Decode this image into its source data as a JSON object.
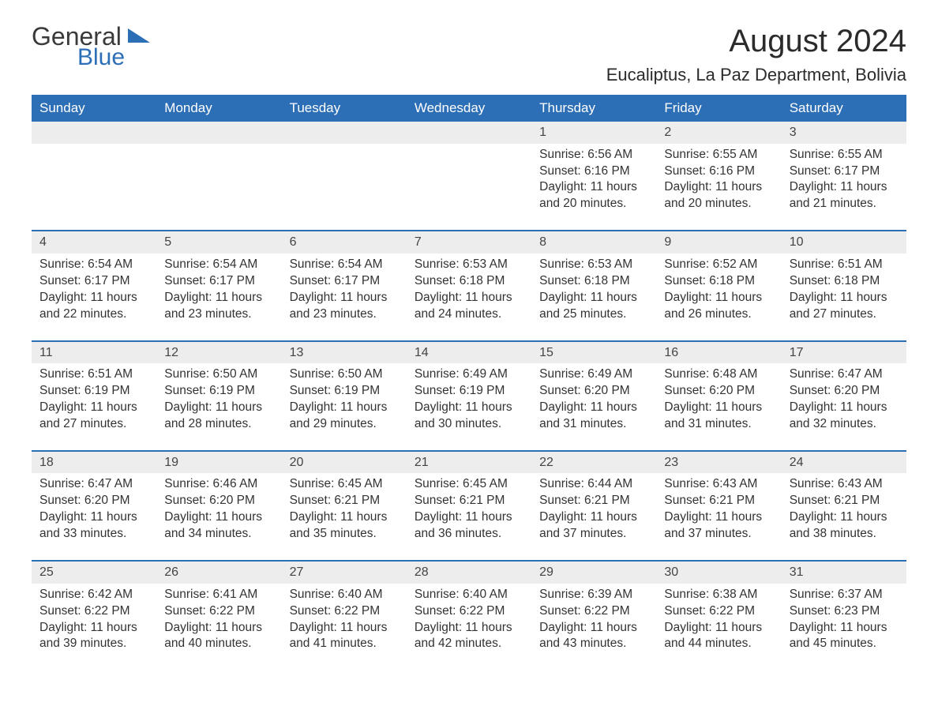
{
  "logo": {
    "word1": "General",
    "word2": "Blue"
  },
  "title": "August 2024",
  "location": "Eucaliptus, La Paz Department, Bolivia",
  "colors": {
    "header_bg": "#2d6fb6",
    "header_text": "#ffffff",
    "daynum_bg": "#ededed",
    "row_divider": "#2d6fb6",
    "body_text": "#333333",
    "page_bg": "#ffffff"
  },
  "typography": {
    "title_fontsize": 40,
    "location_fontsize": 22,
    "header_fontsize": 17,
    "cell_fontsize": 15.5
  },
  "week_headers": [
    "Sunday",
    "Monday",
    "Tuesday",
    "Wednesday",
    "Thursday",
    "Friday",
    "Saturday"
  ],
  "labels": {
    "sunrise": "Sunrise:",
    "sunset": "Sunset:",
    "daylight_prefix": "Daylight:"
  },
  "weeks": [
    [
      null,
      null,
      null,
      null,
      {
        "day": 1,
        "sunrise": "6:56 AM",
        "sunset": "6:16 PM",
        "daylight": "11 hours and 20 minutes."
      },
      {
        "day": 2,
        "sunrise": "6:55 AM",
        "sunset": "6:16 PM",
        "daylight": "11 hours and 20 minutes."
      },
      {
        "day": 3,
        "sunrise": "6:55 AM",
        "sunset": "6:17 PM",
        "daylight": "11 hours and 21 minutes."
      }
    ],
    [
      {
        "day": 4,
        "sunrise": "6:54 AM",
        "sunset": "6:17 PM",
        "daylight": "11 hours and 22 minutes."
      },
      {
        "day": 5,
        "sunrise": "6:54 AM",
        "sunset": "6:17 PM",
        "daylight": "11 hours and 23 minutes."
      },
      {
        "day": 6,
        "sunrise": "6:54 AM",
        "sunset": "6:17 PM",
        "daylight": "11 hours and 23 minutes."
      },
      {
        "day": 7,
        "sunrise": "6:53 AM",
        "sunset": "6:18 PM",
        "daylight": "11 hours and 24 minutes."
      },
      {
        "day": 8,
        "sunrise": "6:53 AM",
        "sunset": "6:18 PM",
        "daylight": "11 hours and 25 minutes."
      },
      {
        "day": 9,
        "sunrise": "6:52 AM",
        "sunset": "6:18 PM",
        "daylight": "11 hours and 26 minutes."
      },
      {
        "day": 10,
        "sunrise": "6:51 AM",
        "sunset": "6:18 PM",
        "daylight": "11 hours and 27 minutes."
      }
    ],
    [
      {
        "day": 11,
        "sunrise": "6:51 AM",
        "sunset": "6:19 PM",
        "daylight": "11 hours and 27 minutes."
      },
      {
        "day": 12,
        "sunrise": "6:50 AM",
        "sunset": "6:19 PM",
        "daylight": "11 hours and 28 minutes."
      },
      {
        "day": 13,
        "sunrise": "6:50 AM",
        "sunset": "6:19 PM",
        "daylight": "11 hours and 29 minutes."
      },
      {
        "day": 14,
        "sunrise": "6:49 AM",
        "sunset": "6:19 PM",
        "daylight": "11 hours and 30 minutes."
      },
      {
        "day": 15,
        "sunrise": "6:49 AM",
        "sunset": "6:20 PM",
        "daylight": "11 hours and 31 minutes."
      },
      {
        "day": 16,
        "sunrise": "6:48 AM",
        "sunset": "6:20 PM",
        "daylight": "11 hours and 31 minutes."
      },
      {
        "day": 17,
        "sunrise": "6:47 AM",
        "sunset": "6:20 PM",
        "daylight": "11 hours and 32 minutes."
      }
    ],
    [
      {
        "day": 18,
        "sunrise": "6:47 AM",
        "sunset": "6:20 PM",
        "daylight": "11 hours and 33 minutes."
      },
      {
        "day": 19,
        "sunrise": "6:46 AM",
        "sunset": "6:20 PM",
        "daylight": "11 hours and 34 minutes."
      },
      {
        "day": 20,
        "sunrise": "6:45 AM",
        "sunset": "6:21 PM",
        "daylight": "11 hours and 35 minutes."
      },
      {
        "day": 21,
        "sunrise": "6:45 AM",
        "sunset": "6:21 PM",
        "daylight": "11 hours and 36 minutes."
      },
      {
        "day": 22,
        "sunrise": "6:44 AM",
        "sunset": "6:21 PM",
        "daylight": "11 hours and 37 minutes."
      },
      {
        "day": 23,
        "sunrise": "6:43 AM",
        "sunset": "6:21 PM",
        "daylight": "11 hours and 37 minutes."
      },
      {
        "day": 24,
        "sunrise": "6:43 AM",
        "sunset": "6:21 PM",
        "daylight": "11 hours and 38 minutes."
      }
    ],
    [
      {
        "day": 25,
        "sunrise": "6:42 AM",
        "sunset": "6:22 PM",
        "daylight": "11 hours and 39 minutes."
      },
      {
        "day": 26,
        "sunrise": "6:41 AM",
        "sunset": "6:22 PM",
        "daylight": "11 hours and 40 minutes."
      },
      {
        "day": 27,
        "sunrise": "6:40 AM",
        "sunset": "6:22 PM",
        "daylight": "11 hours and 41 minutes."
      },
      {
        "day": 28,
        "sunrise": "6:40 AM",
        "sunset": "6:22 PM",
        "daylight": "11 hours and 42 minutes."
      },
      {
        "day": 29,
        "sunrise": "6:39 AM",
        "sunset": "6:22 PM",
        "daylight": "11 hours and 43 minutes."
      },
      {
        "day": 30,
        "sunrise": "6:38 AM",
        "sunset": "6:22 PM",
        "daylight": "11 hours and 44 minutes."
      },
      {
        "day": 31,
        "sunrise": "6:37 AM",
        "sunset": "6:23 PM",
        "daylight": "11 hours and 45 minutes."
      }
    ]
  ]
}
